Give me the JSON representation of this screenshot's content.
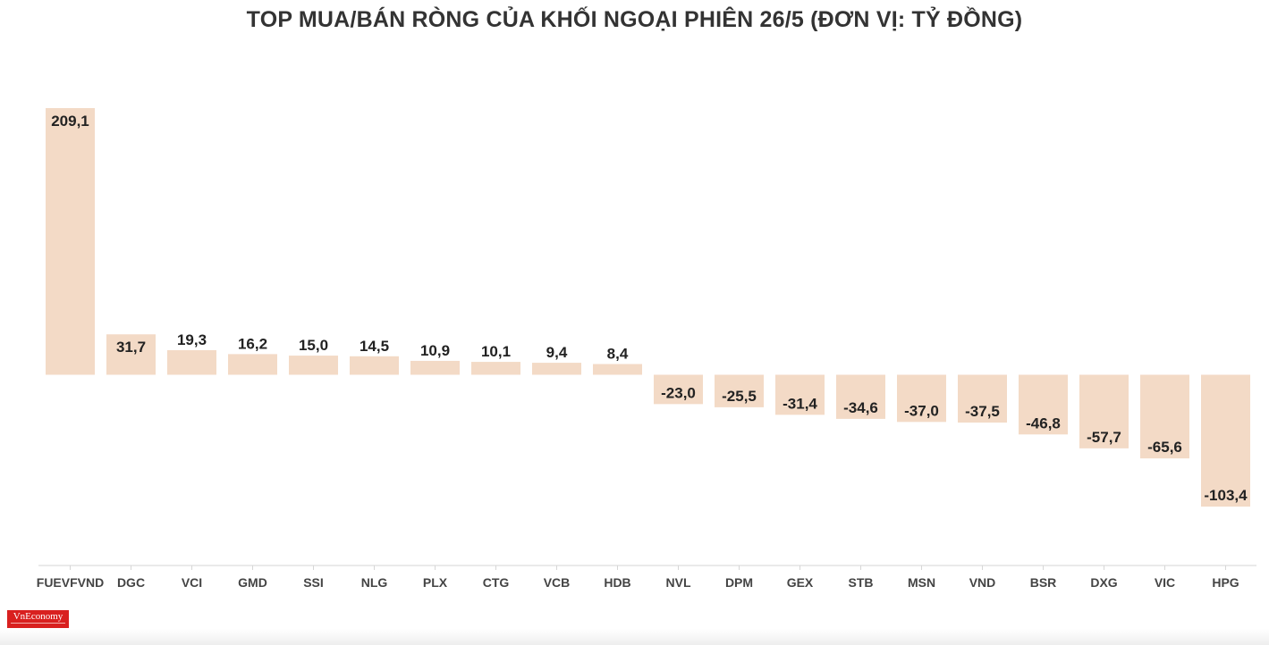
{
  "chart_data": {
    "type": "bar",
    "title": "TOP MUA/BÁN RÒNG CỦA KHỐI NGOẠI PHIÊN 26/5 (ĐƠN VỊ: TỶ ĐỒNG)",
    "categories": [
      "FUEVFVND",
      "DGC",
      "VCI",
      "GMD",
      "SSI",
      "NLG",
      "PLX",
      "CTG",
      "VCB",
      "HDB",
      "NVL",
      "DPM",
      "GEX",
      "STB",
      "MSN",
      "VND",
      "BSR",
      "DXG",
      "VIC",
      "HPG"
    ],
    "values": [
      209.1,
      31.7,
      19.3,
      16.2,
      15.0,
      14.5,
      10.9,
      10.1,
      9.4,
      8.4,
      -23.0,
      -25.5,
      -31.4,
      -34.6,
      -37.0,
      -37.5,
      -46.8,
      -57.7,
      -65.6,
      -103.4
    ],
    "value_labels": [
      "209,1",
      "31,7",
      "19,3",
      "16,2",
      "15,0",
      "14,5",
      "10,9",
      "10,1",
      "9,4",
      "8,4",
      "-23,0",
      "-25,5",
      "-31,4",
      "-34,6",
      "-37,0",
      "-37,5",
      "-46,8",
      "-57,7",
      "-65,6",
      "-103,4"
    ],
    "xlabel": "",
    "ylabel": "",
    "ylim": [
      -150,
      210
    ],
    "grid": false,
    "legend": "none",
    "bar_color": "#f3dac6"
  },
  "logo_text": "VnEconomy"
}
